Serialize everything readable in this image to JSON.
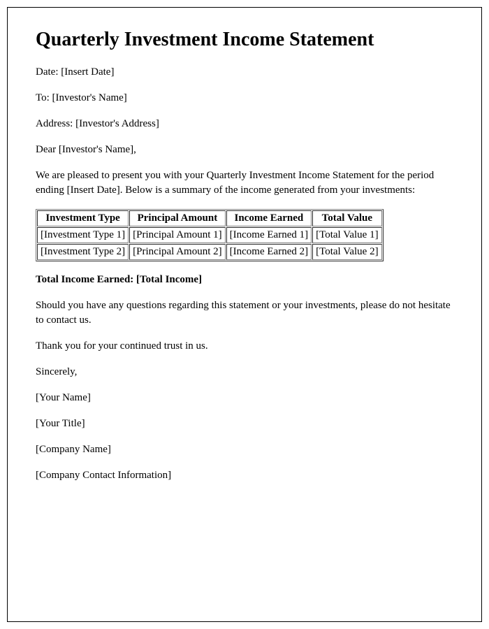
{
  "title": "Quarterly Investment Income Statement",
  "date": {
    "label": "Date: ",
    "value": "[Insert Date]"
  },
  "to": {
    "label": "To: ",
    "value": "[Investor's Name]"
  },
  "address": {
    "label": "Address: ",
    "value": "[Investor's Address]"
  },
  "salutation": {
    "prefix": "Dear ",
    "name": "[Investor's Name]",
    "suffix": ","
  },
  "intro": {
    "part1": "We are pleased to present you with your Quarterly Investment Income Statement for the period ending ",
    "period": "[Insert Date]",
    "part2": ". Below is a summary of the income generated from your investments:"
  },
  "table": {
    "columns": [
      "Investment Type",
      "Principal Amount",
      "Income Earned",
      "Total Value"
    ],
    "rows": [
      [
        "[Investment Type 1]",
        "[Principal Amount 1]",
        "[Income Earned 1]",
        "[Total Value 1]"
      ],
      [
        "[Investment Type 2]",
        "[Principal Amount 2]",
        "[Income Earned 2]",
        "[Total Value 2]"
      ]
    ]
  },
  "total": {
    "label": "Total Income Earned: ",
    "value": "[Total Income]"
  },
  "closing1": "Should you have any questions regarding this statement or your investments, please do not hesitate to contact us.",
  "closing2": "Thank you for your continued trust in us.",
  "signoff": "Sincerely,",
  "signer": {
    "name": "[Your Name]",
    "title": "[Your Title]",
    "company": "[Company Name]",
    "contact": "[Company Contact Information]"
  }
}
